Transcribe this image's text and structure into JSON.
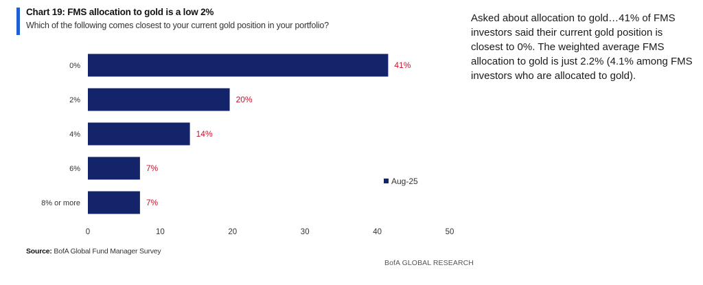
{
  "header": {
    "title": "Chart 19: FMS allocation to gold is a low 2%",
    "subtitle": "Which of the following comes closest to your current gold position in your portfolio?"
  },
  "footer": {
    "source_label": "Source:",
    "source_text": " BofA Global Fund Manager Survey",
    "brand": "BofA GLOBAL RESEARCH"
  },
  "commentary": {
    "text": "Asked about allocation to gold…41% of FMS investors said their current gold position is closest to 0%. The weighted average FMS allocation to gold is just 2.2% (4.1% among FMS investors who are allocated to gold)."
  },
  "colors": {
    "bar": "#13246b",
    "label": "#c8102e",
    "accent": "#1f5fd6"
  },
  "chart_data": {
    "type": "bar",
    "orientation": "horizontal",
    "title": "Chart 19: FMS allocation to gold is a low 2%",
    "subtitle": "Which of the following comes closest to your current gold position in your portfolio?",
    "categories": [
      "0%",
      "2%",
      "4%",
      "6%",
      "8% or more"
    ],
    "series": [
      {
        "name": "Aug-25",
        "values": [
          41.5,
          19.6,
          14.1,
          7.2,
          7.2
        ],
        "labels": [
          "41%",
          "20%",
          "14%",
          "7%",
          "7%"
        ]
      }
    ],
    "xlim": [
      0,
      50
    ],
    "xticks": [
      0,
      10,
      20,
      30,
      40,
      50
    ],
    "xlabel": "",
    "ylabel": "",
    "grid": false,
    "legend": "right"
  }
}
